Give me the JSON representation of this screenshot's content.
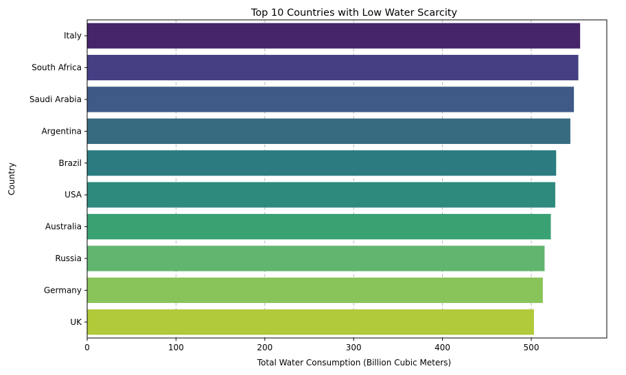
{
  "chart_data": {
    "type": "bar",
    "orientation": "horizontal",
    "title": "Top 10 Countries with Low Water Scarcity",
    "xlabel": "Total Water Consumption (Billion Cubic Meters)",
    "ylabel": "Country",
    "categories": [
      "Italy",
      "South Africa",
      "Saudi Arabia",
      "Argentina",
      "Brazil",
      "USA",
      "Australia",
      "Russia",
      "Germany",
      "UK"
    ],
    "values": [
      555,
      553,
      548,
      544,
      528,
      527,
      522,
      515,
      513,
      503
    ],
    "colors": [
      "#482475",
      "#414487",
      "#355f8d",
      "#2a788e",
      "#21918c",
      "#22a884",
      "#44bf70",
      "#7ad151",
      "#bddf26",
      "#fde725"
    ],
    "bar_colors": [
      "#46256a",
      "#463f83",
      "#3f5a87",
      "#376b80",
      "#2b7b80",
      "#2f8a7e",
      "#3aa173",
      "#62b56f",
      "#89c45a",
      "#b0ca3a"
    ],
    "xlim": [
      0,
      585
    ],
    "xticks": [
      0,
      100,
      200,
      300,
      400,
      500
    ],
    "grid": "x-dashed",
    "legend": "none"
  }
}
